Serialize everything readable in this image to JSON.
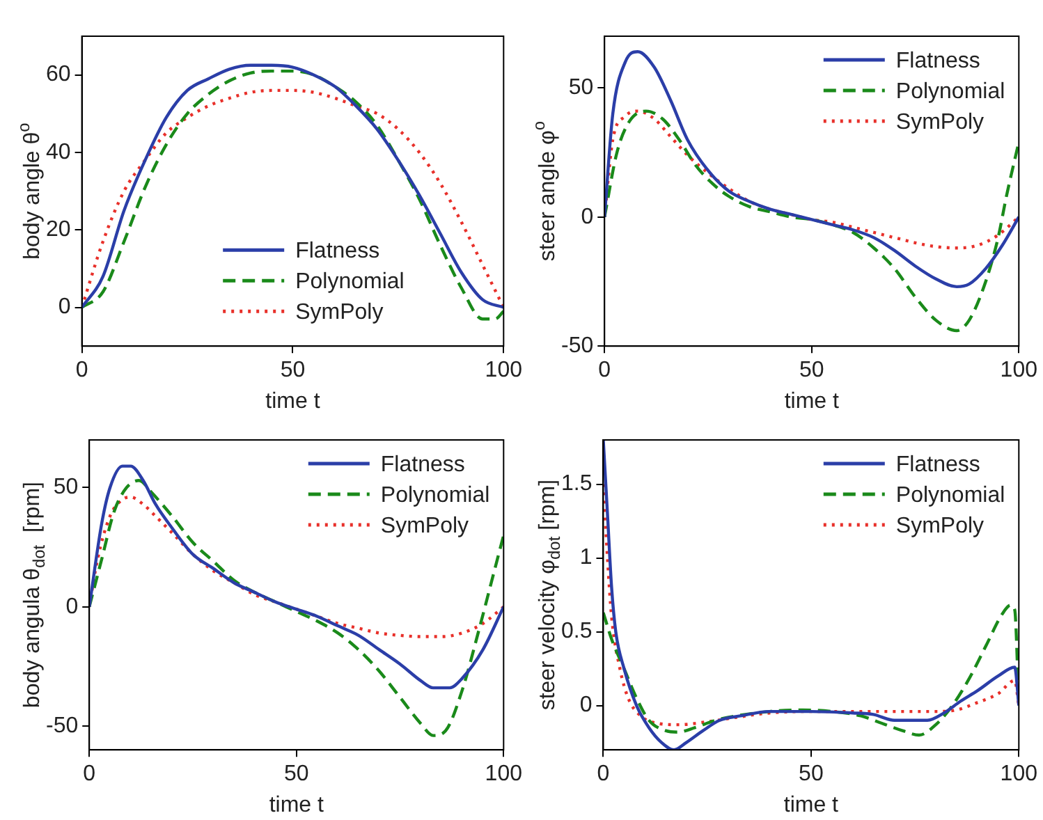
{
  "chart_data": [
    {
      "type": "line",
      "xlabel": "time t",
      "ylabel": "body angle θ$^{o}$",
      "xlim": [
        0,
        100
      ],
      "xticks": [
        0,
        50,
        100
      ],
      "ylim": [
        -10,
        70
      ],
      "yticks": [
        0,
        20,
        40,
        60
      ],
      "grid": false,
      "legend": "bottom",
      "marker": "none",
      "series": [
        {
          "name": "Flatness",
          "color": "#2b3ea8",
          "line_style": "solid",
          "x": [
            0,
            5,
            10,
            15,
            20,
            25,
            30,
            35,
            40,
            45,
            50,
            55,
            60,
            65,
            70,
            75,
            80,
            85,
            90,
            95,
            100
          ],
          "values": [
            0,
            8,
            25,
            38,
            49,
            56,
            59,
            61.5,
            62.5,
            62.5,
            62,
            60,
            57,
            52,
            46,
            38,
            29,
            19,
            9,
            2,
            0
          ]
        },
        {
          "name": "Polynomial",
          "color": "#1a8a1a",
          "line_style": "dashed",
          "x": [
            0,
            5,
            10,
            15,
            20,
            25,
            30,
            35,
            40,
            45,
            50,
            55,
            60,
            65,
            70,
            75,
            80,
            85,
            90,
            95,
            98,
            100
          ],
          "values": [
            0,
            4,
            17,
            31,
            42,
            50,
            55,
            58.5,
            60.5,
            61,
            61,
            60,
            57,
            53,
            47,
            38,
            28,
            16,
            5,
            -3,
            -3,
            -1
          ]
        },
        {
          "name": "SymPoly",
          "color": "#e8302a",
          "line_style": "dotted",
          "x": [
            0,
            5,
            10,
            15,
            20,
            25,
            30,
            35,
            40,
            45,
            50,
            55,
            60,
            65,
            70,
            75,
            80,
            85,
            90,
            95,
            100
          ],
          "values": [
            0,
            17,
            30,
            38,
            45,
            49,
            52,
            54,
            55.5,
            56,
            56,
            55.5,
            54,
            52,
            50,
            46,
            40,
            32,
            22,
            11,
            0
          ]
        }
      ]
    },
    {
      "type": "line",
      "xlabel": "time t",
      "ylabel": "steer angle φ$^{o}$",
      "xlim": [
        0,
        100
      ],
      "xticks": [
        0,
        50,
        100
      ],
      "ylim": [
        -50,
        70
      ],
      "yticks": [
        -50,
        0,
        50
      ],
      "grid": false,
      "legend": "top right",
      "marker": "none",
      "series": [
        {
          "name": "Flatness",
          "color": "#2b3ea8",
          "line_style": "solid",
          "x": [
            0,
            2,
            5,
            8,
            12,
            16,
            20,
            25,
            30,
            35,
            40,
            45,
            50,
            55,
            60,
            65,
            70,
            75,
            80,
            85,
            88,
            92,
            96,
            100
          ],
          "values": [
            0,
            40,
            60,
            64,
            58,
            45,
            30,
            18,
            10,
            6,
            3,
            1,
            -1,
            -3,
            -5,
            -8,
            -13,
            -19,
            -24,
            -27,
            -26,
            -20,
            -11,
            0
          ]
        },
        {
          "name": "Polynomial",
          "color": "#1a8a1a",
          "line_style": "dashed",
          "x": [
            0,
            3,
            6,
            10,
            14,
            18,
            22,
            26,
            30,
            35,
            40,
            45,
            50,
            55,
            60,
            65,
            70,
            75,
            80,
            85,
            88,
            92,
            95,
            97,
            100
          ],
          "values": [
            0,
            25,
            37,
            41,
            38,
            30,
            20,
            13,
            8,
            4,
            2,
            0,
            -1,
            -3,
            -6,
            -12,
            -20,
            -31,
            -40,
            -44,
            -40,
            -25,
            -8,
            8,
            29
          ]
        },
        {
          "name": "SymPoly",
          "color": "#e8302a",
          "line_style": "dotted",
          "x": [
            0,
            2,
            5,
            8,
            12,
            16,
            20,
            25,
            30,
            35,
            40,
            45,
            50,
            55,
            60,
            65,
            70,
            75,
            80,
            85,
            90,
            95,
            100
          ],
          "values": [
            0,
            30,
            39,
            41,
            38,
            31,
            24,
            17,
            11,
            6,
            3,
            1,
            -1,
            -2,
            -4,
            -6,
            -8,
            -10,
            -11.5,
            -12,
            -11,
            -7,
            0
          ]
        }
      ]
    },
    {
      "type": "line",
      "xlabel": "time t",
      "ylabel": "body angula θ$_{dot}$  [rpm]",
      "xlim": [
        0,
        100
      ],
      "xticks": [
        0,
        50,
        100
      ],
      "ylim": [
        -60,
        70
      ],
      "yticks": [
        -50,
        0,
        50
      ],
      "grid": false,
      "legend": "top right",
      "marker": "none",
      "series": [
        {
          "name": "Flatness",
          "color": "#2b3ea8",
          "line_style": "solid",
          "x": [
            0,
            3,
            5,
            8,
            10,
            13,
            16,
            20,
            25,
            30,
            35,
            40,
            45,
            50,
            55,
            60,
            65,
            70,
            75,
            80,
            83,
            87,
            90,
            95,
            100
          ],
          "values": [
            0,
            35,
            50,
            59,
            59,
            53,
            43,
            33,
            22,
            16,
            10,
            6,
            2,
            -1,
            -4,
            -8,
            -12,
            -18,
            -24,
            -31,
            -34,
            -34,
            -30,
            -18,
            0
          ]
        },
        {
          "name": "Polynomial",
          "color": "#1a8a1a",
          "line_style": "dashed",
          "x": [
            0,
            3,
            6,
            9,
            12,
            15,
            20,
            25,
            30,
            35,
            40,
            45,
            50,
            55,
            60,
            65,
            70,
            75,
            80,
            83,
            86,
            90,
            94,
            97,
            100
          ],
          "values": [
            0,
            20,
            40,
            50,
            53,
            48,
            38,
            27,
            19,
            11,
            6,
            2,
            -2,
            -6,
            -11,
            -18,
            -27,
            -38,
            -49,
            -54,
            -52,
            -35,
            -10,
            10,
            30
          ]
        },
        {
          "name": "SymPoly",
          "color": "#e8302a",
          "line_style": "dotted",
          "x": [
            0,
            2,
            5,
            8,
            10,
            13,
            16,
            20,
            25,
            30,
            35,
            40,
            45,
            50,
            55,
            60,
            65,
            70,
            75,
            80,
            85,
            90,
            95,
            100
          ],
          "values": [
            0,
            20,
            38,
            45,
            46,
            43,
            38,
            31,
            22,
            15,
            10,
            5,
            2,
            -1,
            -4,
            -7,
            -9,
            -11,
            -12,
            -12.5,
            -12.5,
            -11,
            -7,
            0
          ]
        }
      ]
    },
    {
      "type": "line",
      "xlabel": "time t",
      "ylabel": "steer velocity φ$_{dot}$ [rpm]",
      "xlim": [
        0,
        100
      ],
      "xticks": [
        0,
        50,
        100
      ],
      "ylim": [
        -0.3,
        1.8
      ],
      "yticks": [
        0,
        0.5,
        1,
        1.5
      ],
      "grid": false,
      "legend": "top right",
      "marker": "none",
      "series": [
        {
          "name": "Flatness",
          "color": "#2b3ea8",
          "line_style": "solid",
          "x": [
            0,
            1,
            2,
            3,
            5,
            8,
            11,
            14,
            17,
            20,
            24,
            28,
            33,
            40,
            50,
            60,
            65,
            70,
            78,
            82,
            86,
            90,
            95,
            99,
            100
          ],
          "values": [
            1.8,
            1.3,
            0.8,
            0.5,
            0.25,
            0,
            -0.15,
            -0.25,
            -0.3,
            -0.25,
            -0.17,
            -0.1,
            -0.07,
            -0.04,
            -0.04,
            -0.05,
            -0.06,
            -0.1,
            -0.1,
            -0.05,
            0.03,
            0.1,
            0.2,
            0.26,
            0
          ]
        },
        {
          "name": "Polynomial",
          "color": "#1a8a1a",
          "line_style": "dashed",
          "x": [
            0,
            2,
            5,
            8,
            11,
            15,
            18,
            22,
            27,
            32,
            40,
            48,
            55,
            62,
            67,
            72,
            76,
            80,
            84,
            88,
            92,
            96,
            98,
            99,
            100
          ],
          "values": [
            0.63,
            0.45,
            0.25,
            0.05,
            -0.1,
            -0.17,
            -0.18,
            -0.15,
            -0.1,
            -0.07,
            -0.04,
            -0.03,
            -0.04,
            -0.07,
            -0.12,
            -0.17,
            -0.2,
            -0.13,
            0,
            0.18,
            0.4,
            0.62,
            0.68,
            0.65,
            0
          ]
        },
        {
          "name": "SymPoly",
          "color": "#e8302a",
          "line_style": "dotted",
          "x": [
            0,
            1,
            2,
            4,
            6,
            9,
            13,
            18,
            25,
            32,
            40,
            50,
            60,
            70,
            80,
            85,
            90,
            95,
            99,
            100
          ],
          "values": [
            1.5,
            1,
            0.6,
            0.25,
            0.05,
            -0.07,
            -0.12,
            -0.13,
            -0.11,
            -0.08,
            -0.05,
            -0.04,
            -0.04,
            -0.04,
            -0.04,
            -0.03,
            0.02,
            0.08,
            0.17,
            0
          ]
        }
      ]
    }
  ]
}
